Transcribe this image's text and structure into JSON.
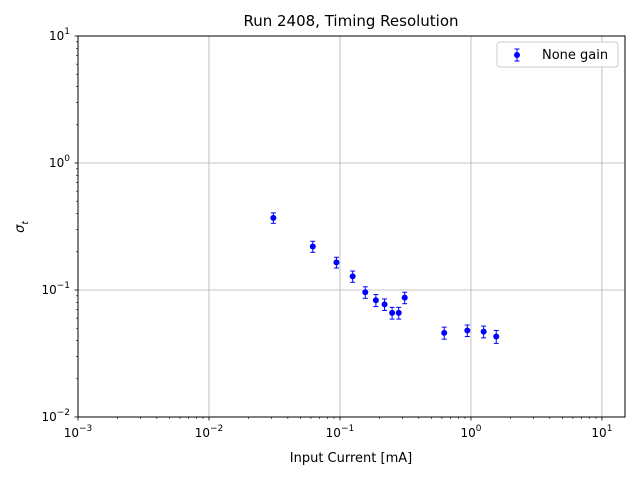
{
  "chart_data": {
    "type": "scatter",
    "title": "Run 2408, Timing Resolution",
    "xlabel": "Input Current [mA]",
    "ylabel": "σ_t",
    "ylabel_main": "σ",
    "ylabel_sub": "t",
    "xscale": "log",
    "yscale": "log",
    "xlim": [
      0.001,
      15
    ],
    "ylim": [
      0.01,
      10
    ],
    "grid": true,
    "legend_position": "upper-right",
    "x_ticks": [
      {
        "value": 0.001,
        "base": "10",
        "exp": "−3"
      },
      {
        "value": 0.01,
        "base": "10",
        "exp": "−2"
      },
      {
        "value": 0.1,
        "base": "10",
        "exp": "−1"
      },
      {
        "value": 1,
        "base": "10",
        "exp": "0"
      },
      {
        "value": 10,
        "base": "10",
        "exp": "1"
      }
    ],
    "y_ticks": [
      {
        "value": 0.01,
        "base": "10",
        "exp": "−2"
      },
      {
        "value": 0.1,
        "base": "10",
        "exp": "−1"
      },
      {
        "value": 1,
        "base": "10",
        "exp": "0"
      },
      {
        "value": 10,
        "base": "10",
        "exp": "1"
      }
    ],
    "series": [
      {
        "name": "None gain",
        "color": "#0000ff",
        "points": [
          {
            "x": 0.031,
            "y": 0.37,
            "err": 0.035
          },
          {
            "x": 0.062,
            "y": 0.22,
            "err": 0.022
          },
          {
            "x": 0.094,
            "y": 0.165,
            "err": 0.016
          },
          {
            "x": 0.125,
            "y": 0.128,
            "err": 0.013
          },
          {
            "x": 0.156,
            "y": 0.096,
            "err": 0.01
          },
          {
            "x": 0.188,
            "y": 0.083,
            "err": 0.009
          },
          {
            "x": 0.219,
            "y": 0.077,
            "err": 0.008
          },
          {
            "x": 0.25,
            "y": 0.066,
            "err": 0.007
          },
          {
            "x": 0.281,
            "y": 0.066,
            "err": 0.007
          },
          {
            "x": 0.312,
            "y": 0.087,
            "err": 0.009
          },
          {
            "x": 0.625,
            "y": 0.046,
            "err": 0.005
          },
          {
            "x": 0.938,
            "y": 0.048,
            "err": 0.005
          },
          {
            "x": 1.25,
            "y": 0.047,
            "err": 0.005
          },
          {
            "x": 1.56,
            "y": 0.043,
            "err": 0.005
          }
        ]
      }
    ]
  }
}
